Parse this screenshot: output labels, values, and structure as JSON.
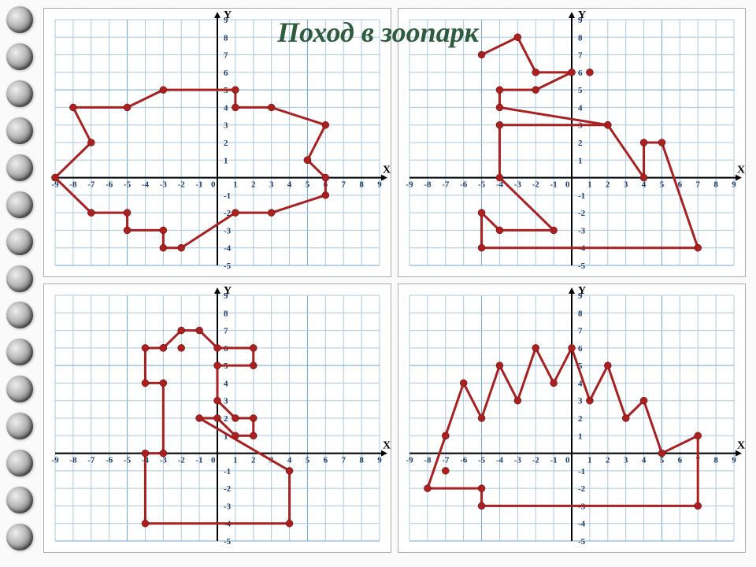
{
  "title": "Поход в зоопарк",
  "title_color": "#2d5d3d",
  "title_fontsize": 36,
  "spiral_rings": 15,
  "axis": {
    "xmin": -9,
    "xmax": 9,
    "ymin": -5,
    "ymax": 9,
    "xticks": [
      -9,
      -8,
      -7,
      -6,
      -5,
      -4,
      -3,
      -2,
      -1,
      1,
      2,
      3,
      4,
      5,
      6,
      7,
      8,
      9
    ],
    "yticks": [
      -5,
      -4,
      -3,
      -2,
      -1,
      1,
      2,
      3,
      4,
      5,
      6,
      7,
      8,
      9
    ],
    "xlabel": "X",
    "ylabel": "Y",
    "grid_color": "#a8c8e0",
    "grid_major_color": "#6fa8d8",
    "axis_color": "#000000",
    "tick_font_size": 11,
    "tick_color": "#1a3a6a"
  },
  "line_color": "#a82020",
  "line_width": 3,
  "point_radius": 4.5,
  "point_color": "#a82020",
  "charts": {
    "fish": {
      "points": [
        [
          -9,
          0
        ],
        [
          -7,
          2
        ],
        [
          -8,
          4
        ],
        [
          -5,
          4
        ],
        [
          -3,
          5
        ],
        [
          1,
          5
        ],
        [
          1,
          4
        ],
        [
          3,
          4
        ],
        [
          6,
          3
        ],
        [
          5,
          1
        ],
        [
          6,
          0
        ],
        [
          6,
          -1
        ],
        [
          3,
          -2
        ],
        [
          1,
          -2
        ],
        [
          -2,
          -4
        ],
        [
          -3,
          -4
        ],
        [
          -3,
          -3
        ],
        [
          -5,
          -3
        ],
        [
          -5,
          -2
        ],
        [
          -7,
          -2
        ],
        [
          -9,
          0
        ]
      ],
      "extras": [
        [
          5,
          1
        ]
      ]
    },
    "squirrel": {
      "points": [
        [
          -5,
          7
        ],
        [
          -3,
          8
        ],
        [
          -2,
          6
        ],
        [
          0,
          6
        ],
        [
          -2,
          5
        ],
        [
          -4,
          5
        ],
        [
          -4,
          4
        ],
        [
          2,
          3
        ],
        [
          -4,
          3
        ],
        [
          -4,
          0
        ],
        [
          -1,
          -3
        ],
        [
          -4,
          -3
        ],
        [
          -5,
          -2
        ],
        [
          -5,
          -4
        ],
        [
          7,
          -4
        ],
        [
          5,
          2
        ],
        [
          4,
          2
        ],
        [
          4,
          0
        ],
        [
          2,
          3
        ]
      ],
      "extras": [
        [
          1,
          6
        ]
      ]
    },
    "duck": {
      "points": [
        [
          -3,
          6
        ],
        [
          -2,
          7
        ],
        [
          -1,
          7
        ],
        [
          0,
          6
        ],
        [
          2,
          6
        ],
        [
          2,
          5
        ],
        [
          0,
          5
        ],
        [
          0,
          3
        ],
        [
          1,
          2
        ],
        [
          2,
          2
        ],
        [
          2,
          1
        ],
        [
          1,
          1
        ],
        [
          0,
          2
        ],
        [
          -1,
          2
        ],
        [
          4,
          -1
        ],
        [
          4,
          -4
        ],
        [
          -4,
          -4
        ],
        [
          -4,
          0
        ],
        [
          -3,
          0
        ],
        [
          -3,
          4
        ],
        [
          -4,
          4
        ],
        [
          -4,
          6
        ],
        [
          -3,
          6
        ]
      ],
      "extras": [
        [
          -2,
          6
        ]
      ]
    },
    "hedgehog": {
      "points": [
        [
          -7,
          1
        ],
        [
          -8,
          -2
        ],
        [
          -5,
          -2
        ],
        [
          -5,
          -3
        ],
        [
          7,
          -3
        ],
        [
          7,
          1
        ],
        [
          5,
          0
        ],
        [
          4,
          3
        ],
        [
          3,
          2
        ],
        [
          2,
          5
        ],
        [
          1,
          3
        ],
        [
          0,
          6
        ],
        [
          -1,
          4
        ],
        [
          -2,
          6
        ],
        [
          -3,
          3
        ],
        [
          -4,
          5
        ],
        [
          -5,
          2
        ],
        [
          -6,
          4
        ],
        [
          -7,
          1
        ]
      ],
      "extras": [
        [
          -7,
          -1
        ]
      ]
    }
  }
}
